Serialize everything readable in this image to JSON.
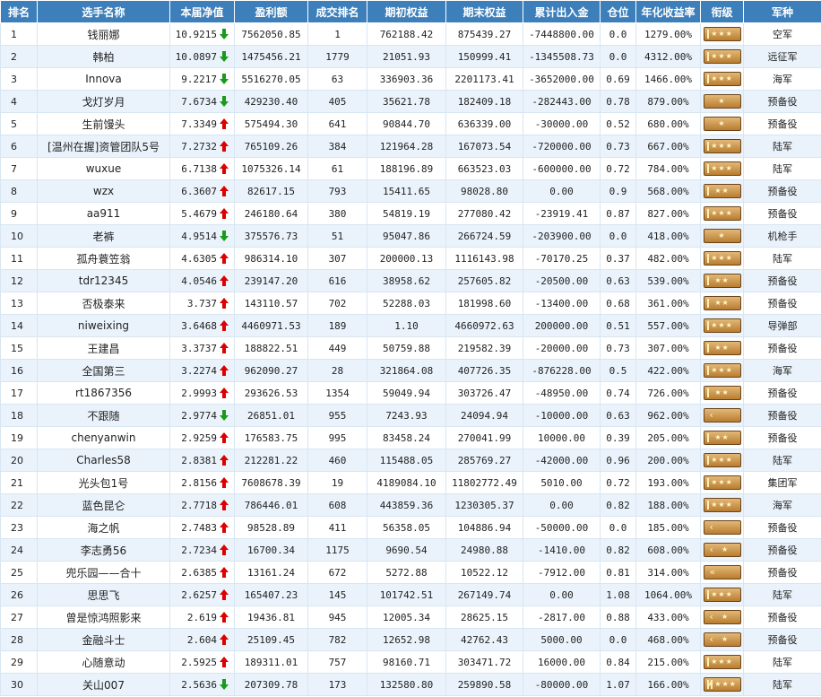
{
  "headers": {
    "rank": "排名",
    "name": "选手名称",
    "net_value": "本届净值",
    "profit": "盈利额",
    "trade_rank": "成交排名",
    "initial_equity": "期初权益",
    "final_equity": "期末权益",
    "net_flow": "累计出入金",
    "position": "仓位",
    "annual_return": "年化收益率",
    "grade": "衔级",
    "branch": "军种"
  },
  "colors": {
    "header_bg": "#3d7fba",
    "row_alt_bg": "#eaf3fb",
    "arrow_up": "#dd0000",
    "arrow_down": "#1a9a1a",
    "badge": "#c78a3a"
  },
  "rows": [
    {
      "rank": "1",
      "name": "钱丽娜",
      "net": "10.9215",
      "dir": "down",
      "profit": "7562050.85",
      "trade_rank": "1",
      "initial": "762188.42",
      "final": "875439.27",
      "flow": "-7448800.00",
      "position": "0.0",
      "annual": "1279.00%",
      "badge": "stars3",
      "branch": "空军"
    },
    {
      "rank": "2",
      "name": "韩柏",
      "net": "10.0897",
      "dir": "down",
      "profit": "1475456.21",
      "trade_rank": "1779",
      "initial": "21051.93",
      "final": "150999.41",
      "flow": "-1345508.73",
      "position": "0.0",
      "annual": "4312.00%",
      "badge": "stars3",
      "branch": "远征军"
    },
    {
      "rank": "3",
      "name": "Innova",
      "net": "9.2217",
      "dir": "down",
      "profit": "5516270.05",
      "trade_rank": "63",
      "initial": "336903.36",
      "final": "2201173.41",
      "flow": "-3652000.00",
      "position": "0.69",
      "annual": "1466.00%",
      "badge": "stars3",
      "branch": "海军"
    },
    {
      "rank": "4",
      "name": "戈灯岁月",
      "net": "7.6734",
      "dir": "down",
      "profit": "429230.40",
      "trade_rank": "405",
      "initial": "35621.78",
      "final": "182409.18",
      "flow": "-282443.00",
      "position": "0.78",
      "annual": "879.00%",
      "badge": "stars1",
      "branch": "预备役"
    },
    {
      "rank": "5",
      "name": "生前馒头",
      "net": "7.3349",
      "dir": "up",
      "profit": "575494.30",
      "trade_rank": "641",
      "initial": "90844.70",
      "final": "636339.00",
      "flow": "-30000.00",
      "position": "0.52",
      "annual": "680.00%",
      "badge": "stars1",
      "branch": "预备役"
    },
    {
      "rank": "6",
      "name": "[温州在握]资管团队5号",
      "net": "7.2732",
      "dir": "up",
      "profit": "765109.26",
      "trade_rank": "384",
      "initial": "121964.28",
      "final": "167073.54",
      "flow": "-720000.00",
      "position": "0.73",
      "annual": "667.00%",
      "badge": "stars3",
      "branch": "陆军"
    },
    {
      "rank": "7",
      "name": "wuxue",
      "net": "6.7138",
      "dir": "up",
      "profit": "1075326.14",
      "trade_rank": "61",
      "initial": "188196.89",
      "final": "663523.03",
      "flow": "-600000.00",
      "position": "0.72",
      "annual": "784.00%",
      "badge": "stars3",
      "branch": "陆军"
    },
    {
      "rank": "8",
      "name": "wzx",
      "net": "6.3607",
      "dir": "up",
      "profit": "82617.15",
      "trade_rank": "793",
      "initial": "15411.65",
      "final": "98028.80",
      "flow": "0.00",
      "position": "0.9",
      "annual": "568.00%",
      "badge": "stars2",
      "branch": "预备役"
    },
    {
      "rank": "9",
      "name": "aa911",
      "net": "5.4679",
      "dir": "up",
      "profit": "246180.64",
      "trade_rank": "380",
      "initial": "54819.19",
      "final": "277080.42",
      "flow": "-23919.41",
      "position": "0.87",
      "annual": "827.00%",
      "badge": "stars3",
      "branch": "预备役"
    },
    {
      "rank": "10",
      "name": "老裤",
      "net": "4.9514",
      "dir": "down",
      "profit": "375576.73",
      "trade_rank": "51",
      "initial": "95047.86",
      "final": "266724.59",
      "flow": "-203900.00",
      "position": "0.0",
      "annual": "418.00%",
      "badge": "stars1",
      "branch": "机枪手"
    },
    {
      "rank": "11",
      "name": "孤舟蓑笠翁",
      "net": "4.6305",
      "dir": "up",
      "profit": "986314.10",
      "trade_rank": "307",
      "initial": "200000.13",
      "final": "1116143.98",
      "flow": "-70170.25",
      "position": "0.37",
      "annual": "482.00%",
      "badge": "stars3",
      "branch": "陆军"
    },
    {
      "rank": "12",
      "name": "tdr12345",
      "net": "4.0546",
      "dir": "up",
      "profit": "239147.20",
      "trade_rank": "616",
      "initial": "38958.62",
      "final": "257605.82",
      "flow": "-20500.00",
      "position": "0.63",
      "annual": "539.00%",
      "badge": "stars2",
      "branch": "预备役"
    },
    {
      "rank": "13",
      "name": "否极泰来",
      "net": "3.737",
      "dir": "up",
      "profit": "143110.57",
      "trade_rank": "702",
      "initial": "52288.03",
      "final": "181998.60",
      "flow": "-13400.00",
      "position": "0.68",
      "annual": "361.00%",
      "badge": "stars2",
      "branch": "预备役"
    },
    {
      "rank": "14",
      "name": "niweixing",
      "net": "3.6468",
      "dir": "up",
      "profit": "4460971.53",
      "trade_rank": "189",
      "initial": "1.10",
      "final": "4660972.63",
      "flow": "200000.00",
      "position": "0.51",
      "annual": "557.00%",
      "badge": "stars3",
      "branch": "导弹部"
    },
    {
      "rank": "15",
      "name": "王建昌",
      "net": "3.3737",
      "dir": "up",
      "profit": "188822.51",
      "trade_rank": "449",
      "initial": "50759.88",
      "final": "219582.39",
      "flow": "-20000.00",
      "position": "0.73",
      "annual": "307.00%",
      "badge": "stars2",
      "branch": "预备役"
    },
    {
      "rank": "16",
      "name": "全国第三",
      "net": "3.2274",
      "dir": "up",
      "profit": "962090.27",
      "trade_rank": "28",
      "initial": "321864.08",
      "final": "407726.35",
      "flow": "-876228.00",
      "position": "0.5",
      "annual": "422.00%",
      "badge": "stars3",
      "branch": "海军"
    },
    {
      "rank": "17",
      "name": "rt1867356",
      "net": "2.9993",
      "dir": "up",
      "profit": "293626.53",
      "trade_rank": "1354",
      "initial": "59049.94",
      "final": "303726.47",
      "flow": "-48950.00",
      "position": "0.74",
      "annual": "726.00%",
      "badge": "stars2",
      "branch": "预备役"
    },
    {
      "rank": "18",
      "name": "不跟随",
      "net": "2.9774",
      "dir": "down",
      "profit": "26851.01",
      "trade_rank": "955",
      "initial": "7243.93",
      "final": "24094.94",
      "flow": "-10000.00",
      "position": "0.63",
      "annual": "962.00%",
      "badge": "chevron",
      "branch": "预备役"
    },
    {
      "rank": "19",
      "name": "chenyanwin",
      "net": "2.9259",
      "dir": "up",
      "profit": "176583.75",
      "trade_rank": "995",
      "initial": "83458.24",
      "final": "270041.99",
      "flow": "10000.00",
      "position": "0.39",
      "annual": "205.00%",
      "badge": "stars2",
      "branch": "预备役"
    },
    {
      "rank": "20",
      "name": "Charles58",
      "net": "2.8381",
      "dir": "up",
      "profit": "212281.22",
      "trade_rank": "460",
      "initial": "115488.05",
      "final": "285769.27",
      "flow": "-42000.00",
      "position": "0.96",
      "annual": "200.00%",
      "badge": "stars3",
      "branch": "陆军"
    },
    {
      "rank": "21",
      "name": "光头包1号",
      "net": "2.8156",
      "dir": "up",
      "profit": "7608678.39",
      "trade_rank": "19",
      "initial": "4189084.10",
      "final": "11802772.49",
      "flow": "5010.00",
      "position": "0.72",
      "annual": "193.00%",
      "badge": "stars3",
      "branch": "集团军"
    },
    {
      "rank": "22",
      "name": "蓝色昆仑",
      "net": "2.7718",
      "dir": "up",
      "profit": "786446.01",
      "trade_rank": "608",
      "initial": "443859.36",
      "final": "1230305.37",
      "flow": "0.00",
      "position": "0.82",
      "annual": "188.00%",
      "badge": "stars3",
      "branch": "海军"
    },
    {
      "rank": "23",
      "name": "海之帆",
      "net": "2.7483",
      "dir": "up",
      "profit": "98528.89",
      "trade_rank": "411",
      "initial": "56358.05",
      "final": "104886.94",
      "flow": "-50000.00",
      "position": "0.0",
      "annual": "185.00%",
      "badge": "chevron",
      "branch": "预备役"
    },
    {
      "rank": "24",
      "name": "李志勇56",
      "net": "2.7234",
      "dir": "up",
      "profit": "16700.34",
      "trade_rank": "1175",
      "initial": "9690.54",
      "final": "24980.88",
      "flow": "-1410.00",
      "position": "0.82",
      "annual": "608.00%",
      "badge": "chev-star",
      "branch": "预备役"
    },
    {
      "rank": "25",
      "name": "兜乐园——合十",
      "net": "2.6385",
      "dir": "up",
      "profit": "13161.24",
      "trade_rank": "672",
      "initial": "5272.88",
      "final": "10522.12",
      "flow": "-7912.00",
      "position": "0.81",
      "annual": "314.00%",
      "badge": "chevron2",
      "branch": "预备役"
    },
    {
      "rank": "26",
      "name": "思思飞",
      "net": "2.6257",
      "dir": "up",
      "profit": "165407.23",
      "trade_rank": "145",
      "initial": "101742.51",
      "final": "267149.74",
      "flow": "0.00",
      "position": "1.08",
      "annual": "1064.00%",
      "badge": "stars3",
      "branch": "陆军"
    },
    {
      "rank": "27",
      "name": "曾是惊鸿照影来",
      "net": "2.619",
      "dir": "up",
      "profit": "19436.81",
      "trade_rank": "945",
      "initial": "12005.34",
      "final": "28625.15",
      "flow": "-2817.00",
      "position": "0.88",
      "annual": "433.00%",
      "badge": "chev-star",
      "branch": "预备役"
    },
    {
      "rank": "28",
      "name": "金融斗士",
      "net": "2.604",
      "dir": "up",
      "profit": "25109.45",
      "trade_rank": "782",
      "initial": "12652.98",
      "final": "42762.43",
      "flow": "5000.00",
      "position": "0.0",
      "annual": "468.00%",
      "badge": "chev-star",
      "branch": "预备役"
    },
    {
      "rank": "29",
      "name": "心随意动",
      "net": "2.5925",
      "dir": "up",
      "profit": "189311.01",
      "trade_rank": "757",
      "initial": "98160.71",
      "final": "303471.72",
      "flow": "16000.00",
      "position": "0.84",
      "annual": "215.00%",
      "badge": "stars3",
      "branch": "陆军"
    },
    {
      "rank": "30",
      "name": "关山007",
      "net": "2.5636",
      "dir": "down",
      "profit": "207309.78",
      "trade_rank": "173",
      "initial": "132580.80",
      "final": "259890.58",
      "flow": "-80000.00",
      "position": "1.07",
      "annual": "166.00%",
      "badge": "stars4",
      "branch": "陆军"
    }
  ]
}
